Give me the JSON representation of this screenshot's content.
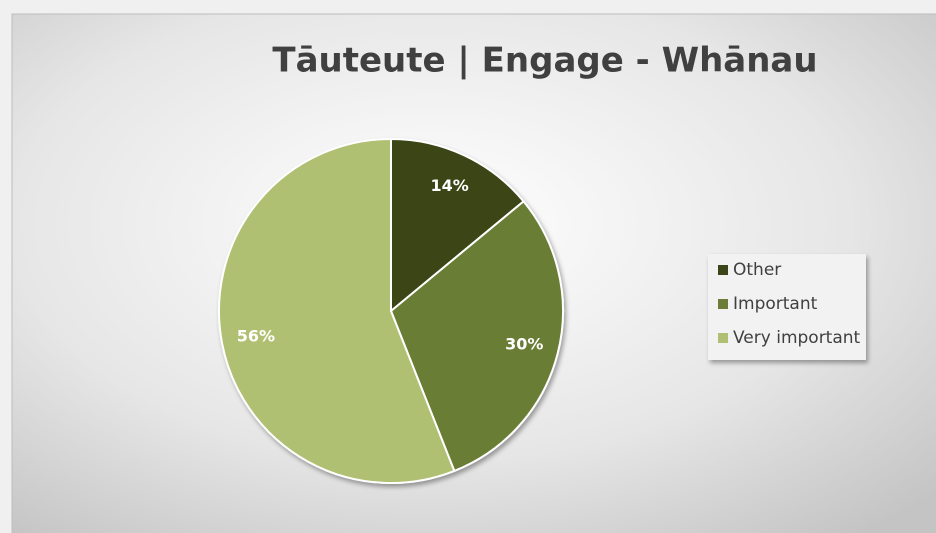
{
  "chart_data": {
    "type": "pie",
    "title": "Tāuteute | Engage - Whānau",
    "categories": [
      "Other",
      "Important",
      "Very important"
    ],
    "values": [
      14,
      30,
      56
    ],
    "value_labels": [
      "14%",
      "30%",
      "56%"
    ],
    "colors": [
      "#3b4519",
      "#6b7d36",
      "#b0c072"
    ],
    "legend": "right"
  }
}
